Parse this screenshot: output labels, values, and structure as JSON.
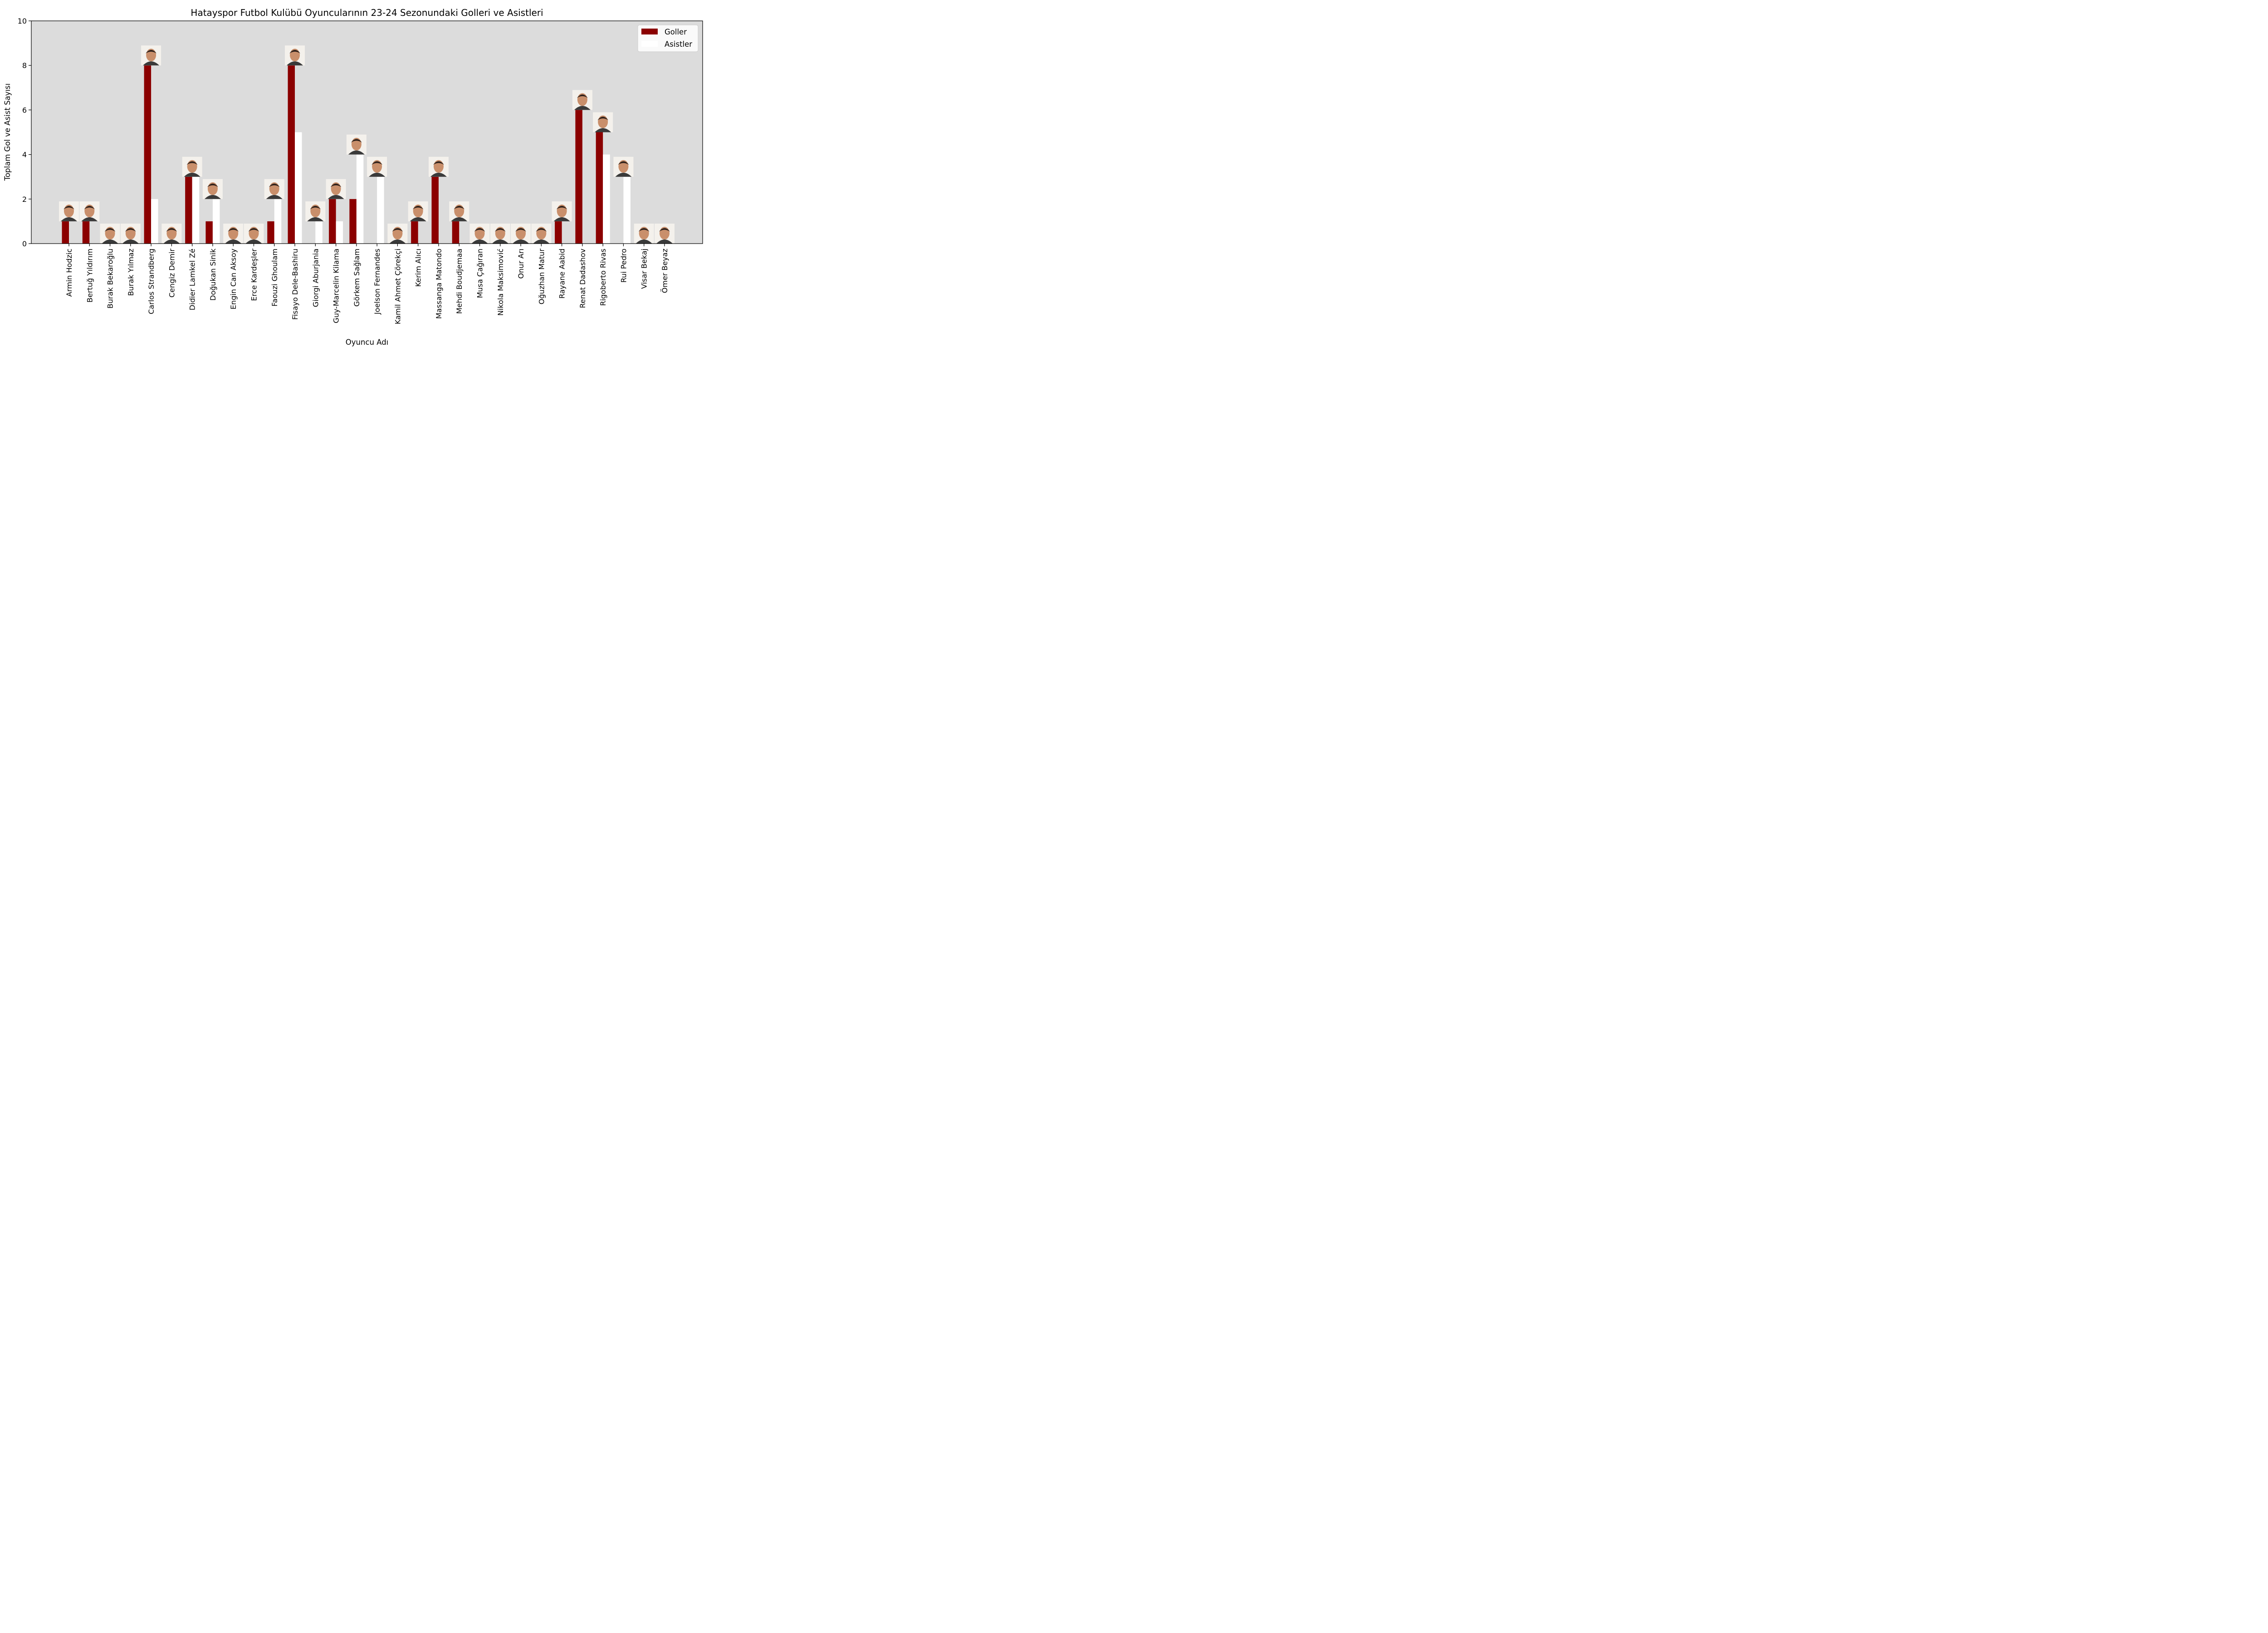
{
  "chart_data": {
    "type": "bar",
    "title": "Hatayspor Futbol Kulübü Oyuncularının 23-24 Sezonundaki Golleri ve Asistleri",
    "xlabel": "Oyuncu Adı",
    "ylabel": "Toplam Gol ve Asist Sayısı",
    "ylim": [
      0,
      10
    ],
    "yticks": [
      0,
      2,
      4,
      6,
      8,
      10
    ],
    "grid": false,
    "legend_position": "top-right",
    "plot_background": "#dcdcdc",
    "categories": [
      "Armin Hodzic",
      "Bertuğ Yıldırım",
      "Burak Bekaroğlu",
      "Burak Yılmaz",
      "Carlos Strandberg",
      "Cengiz Demir",
      "Didier Lamkel Zé",
      "Doğukan Sinik",
      "Engin Can Aksoy",
      "Erce Kardeşler",
      "Faouzi Ghoulam",
      "Fisayo Dele-Bashiru",
      "Giorgi Aburjania",
      "Guy-Marcelin Kilama",
      "Görkem Sağlam",
      "Joelson Fernandes",
      "Kamil Ahmet Çörekçi",
      "Kerim Alıcı",
      "Massanga Matondo",
      "Mehdi Boudjemaa",
      "Musa Çağıran",
      "Nikola Maksimović",
      "Onur Arı",
      "Oğuzhan Matur",
      "Rayane Aabid",
      "Renat Dadashov",
      "Rigoberto Rivas",
      "Rui Pedro",
      "Visar Bekaj",
      "Ömer Beyaz"
    ],
    "series": [
      {
        "name": "Goller",
        "color": "#8b0000",
        "values": [
          1,
          1,
          0,
          0,
          8,
          0,
          3,
          1,
          0,
          0,
          1,
          8,
          0,
          2,
          2,
          0,
          0,
          1,
          3,
          1,
          0,
          0,
          0,
          0,
          1,
          6,
          5,
          0,
          0,
          0
        ]
      },
      {
        "name": "Asistler",
        "color": "#ffffff",
        "values": [
          0,
          0,
          0,
          0,
          2,
          0,
          3,
          2,
          0,
          0,
          2,
          5,
          1,
          1,
          4,
          3,
          0,
          0,
          0,
          0,
          0,
          0,
          0,
          0,
          0,
          0,
          4,
          3,
          0,
          0
        ]
      }
    ],
    "annotations": "player headshot photo above each pair of bars"
  }
}
